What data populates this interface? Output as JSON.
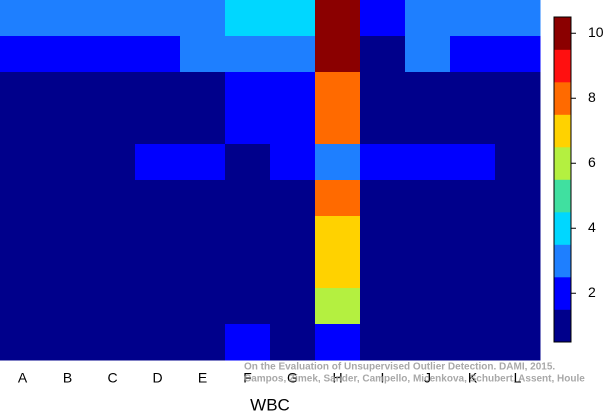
{
  "chart_data": {
    "type": "heatmap",
    "xlabel": "WBC",
    "categories": [
      "A",
      "B",
      "C",
      "D",
      "E",
      "F",
      "G",
      "H",
      "I",
      "J",
      "K",
      "L"
    ],
    "z": [
      [
        3,
        3,
        3,
        3,
        3,
        4,
        4,
        10,
        2,
        3,
        3,
        3
      ],
      [
        2,
        2,
        2,
        2,
        3,
        3,
        3,
        10,
        1,
        3,
        2,
        2
      ],
      [
        1,
        1,
        1,
        1,
        1,
        2,
        2,
        8,
        1,
        1,
        1,
        1
      ],
      [
        1,
        1,
        1,
        1,
        1,
        2,
        2,
        8,
        1,
        1,
        1,
        1
      ],
      [
        1,
        1,
        1,
        2,
        2,
        1,
        2,
        3,
        2,
        2,
        2,
        1
      ],
      [
        1,
        1,
        1,
        1,
        1,
        1,
        1,
        8,
        1,
        1,
        1,
        1
      ],
      [
        1,
        1,
        1,
        1,
        1,
        1,
        1,
        7,
        1,
        1,
        1,
        1
      ],
      [
        1,
        1,
        1,
        1,
        1,
        1,
        1,
        7,
        1,
        1,
        1,
        1
      ],
      [
        1,
        1,
        1,
        1,
        1,
        1,
        1,
        6,
        1,
        1,
        1,
        1
      ],
      [
        1,
        1,
        1,
        1,
        1,
        2,
        1,
        2,
        1,
        1,
        1,
        1
      ]
    ],
    "levels": [
      1,
      2,
      3,
      4,
      5,
      6,
      7,
      8,
      9,
      10
    ],
    "colors": [
      "#00008b",
      "#0000ff",
      "#1e7fff",
      "#00d7ff",
      "#40e0a0",
      "#b4f040",
      "#ffd200",
      "#ff6a00",
      "#ff1010",
      "#8b0000"
    ],
    "zlim": [
      0.5,
      10.5
    ],
    "zticks": [
      2,
      4,
      6,
      8,
      10
    ],
    "annotation": [
      "On the Evaluation of Unsupervised Outlier Detection. DAMI, 2015.",
      "Campos, Zimek, Sander, Campello, Micenkova, Schubert, Assent, Houle"
    ]
  }
}
